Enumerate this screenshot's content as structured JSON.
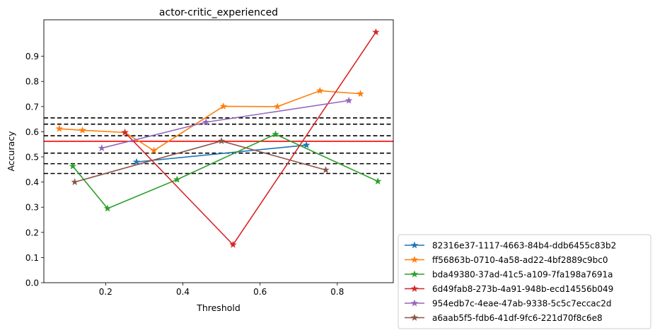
{
  "chart_data": {
    "type": "line",
    "title": "actor-critic_experienced",
    "xlabel": "Threshold",
    "ylabel": "Accuracy",
    "xlim": [
      0.04,
      0.945
    ],
    "ylim": [
      0.0,
      1.045
    ],
    "xticks": [
      "0.2",
      "0.4",
      "0.6",
      "0.8"
    ],
    "yticks": [
      "0.0",
      "0.1",
      "0.2",
      "0.3",
      "0.4",
      "0.5",
      "0.6",
      "0.7",
      "0.8",
      "0.9"
    ],
    "legend_position": "outside-bottom-right",
    "series": [
      {
        "name": "82316e37-1117-4663-84b4-ddb6455c83b2",
        "color": "#1f77b4",
        "x": [
          0.28,
          0.72
        ],
        "y": [
          0.48,
          0.547
        ]
      },
      {
        "name": "ff56863b-0710-4a58-ad22-4bf2889c9bc0",
        "color": "#ff7f0e",
        "x": [
          0.08,
          0.14,
          0.25,
          0.325,
          0.505,
          0.645,
          0.755,
          0.86
        ],
        "y": [
          0.612,
          0.606,
          0.597,
          0.525,
          0.701,
          0.7,
          0.763,
          0.751
        ]
      },
      {
        "name": "bda49380-37ad-41c5-a109-7fa198a7691a",
        "color": "#2ca02c",
        "x": [
          0.115,
          0.205,
          0.385,
          0.64,
          0.905
        ],
        "y": [
          0.463,
          0.295,
          0.41,
          0.59,
          0.403
        ]
      },
      {
        "name": "6d49fab8-273b-4a91-948b-ecd14556b049",
        "color": "#d62728",
        "x": [
          0.25,
          0.53,
          0.9
        ],
        "y": [
          0.597,
          0.151,
          0.996
        ]
      },
      {
        "name": "954edb7c-4eae-47ab-9338-5c5c7eccac2d",
        "color": "#9467bd",
        "x": [
          0.19,
          0.46,
          0.83
        ],
        "y": [
          0.535,
          0.638,
          0.724
        ]
      },
      {
        "name": "a6aab5f5-fdb6-41df-9fc6-221d70f8c6e8",
        "color": "#8c564b",
        "x": [
          0.12,
          0.5,
          0.77
        ],
        "y": [
          0.4,
          0.563,
          0.448
        ]
      }
    ],
    "hlines": [
      {
        "y": 0.562,
        "color": "#ff0000",
        "style": "solid"
      },
      {
        "y": 0.655,
        "color": "#000000",
        "style": "dashed"
      },
      {
        "y": 0.63,
        "color": "#000000",
        "style": "dashed"
      },
      {
        "y": 0.584,
        "color": "#000000",
        "style": "dashed"
      },
      {
        "y": 0.515,
        "color": "#000000",
        "style": "dashed"
      },
      {
        "y": 0.473,
        "color": "#000000",
        "style": "dashed"
      },
      {
        "y": 0.434,
        "color": "#000000",
        "style": "dashed"
      }
    ]
  }
}
